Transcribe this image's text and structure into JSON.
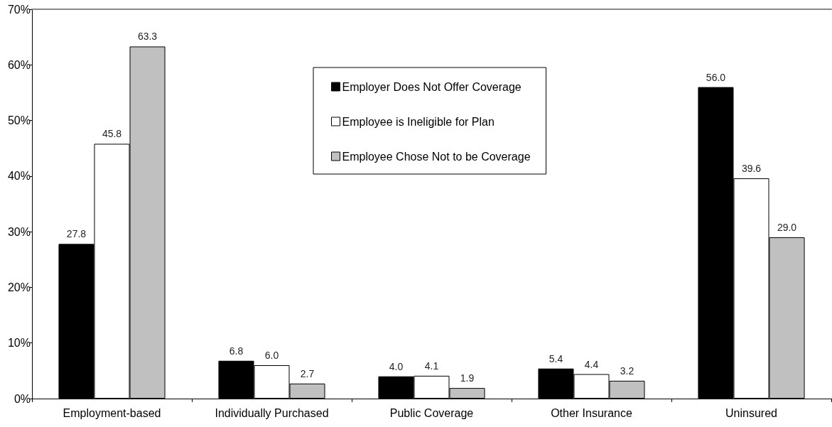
{
  "chart_data": {
    "type": "bar",
    "categories": [
      "Employment-based",
      "Individually Purchased",
      "Public Coverage",
      "Other Insurance",
      "Uninsured"
    ],
    "series": [
      {
        "name": "Employer Does Not Offer Coverage",
        "color": "#000000",
        "values": [
          27.8,
          6.8,
          4.0,
          5.4,
          56.0
        ],
        "value_labels": [
          "27.8",
          "6.8",
          "4.0",
          "5.4",
          "56.0"
        ]
      },
      {
        "name": "Employee is Ineligible for Plan",
        "color": "#ffffff",
        "values": [
          45.8,
          6.0,
          4.1,
          4.4,
          39.6
        ],
        "value_labels": [
          "45.8",
          "6.0",
          "4.1",
          "4.4",
          "39.6"
        ]
      },
      {
        "name": "Employee Chose Not to be Coverage",
        "color": "#c0c0c0",
        "values": [
          63.3,
          2.7,
          1.9,
          3.2,
          29.0
        ],
        "value_labels": [
          "63.3",
          "2.7",
          "1.9",
          "3.2",
          "29.0"
        ]
      }
    ],
    "ylim": [
      0,
      70
    ],
    "yticks": [
      {
        "value": 0,
        "label": "0%"
      },
      {
        "value": 10,
        "label": "10%"
      },
      {
        "value": 20,
        "label": "20%"
      },
      {
        "value": 30,
        "label": "30%"
      },
      {
        "value": 40,
        "label": "40%"
      },
      {
        "value": 50,
        "label": "50%"
      },
      {
        "value": 60,
        "label": "60%"
      },
      {
        "value": 70,
        "label": "70%"
      }
    ],
    "grid": false,
    "legend": "top"
  }
}
